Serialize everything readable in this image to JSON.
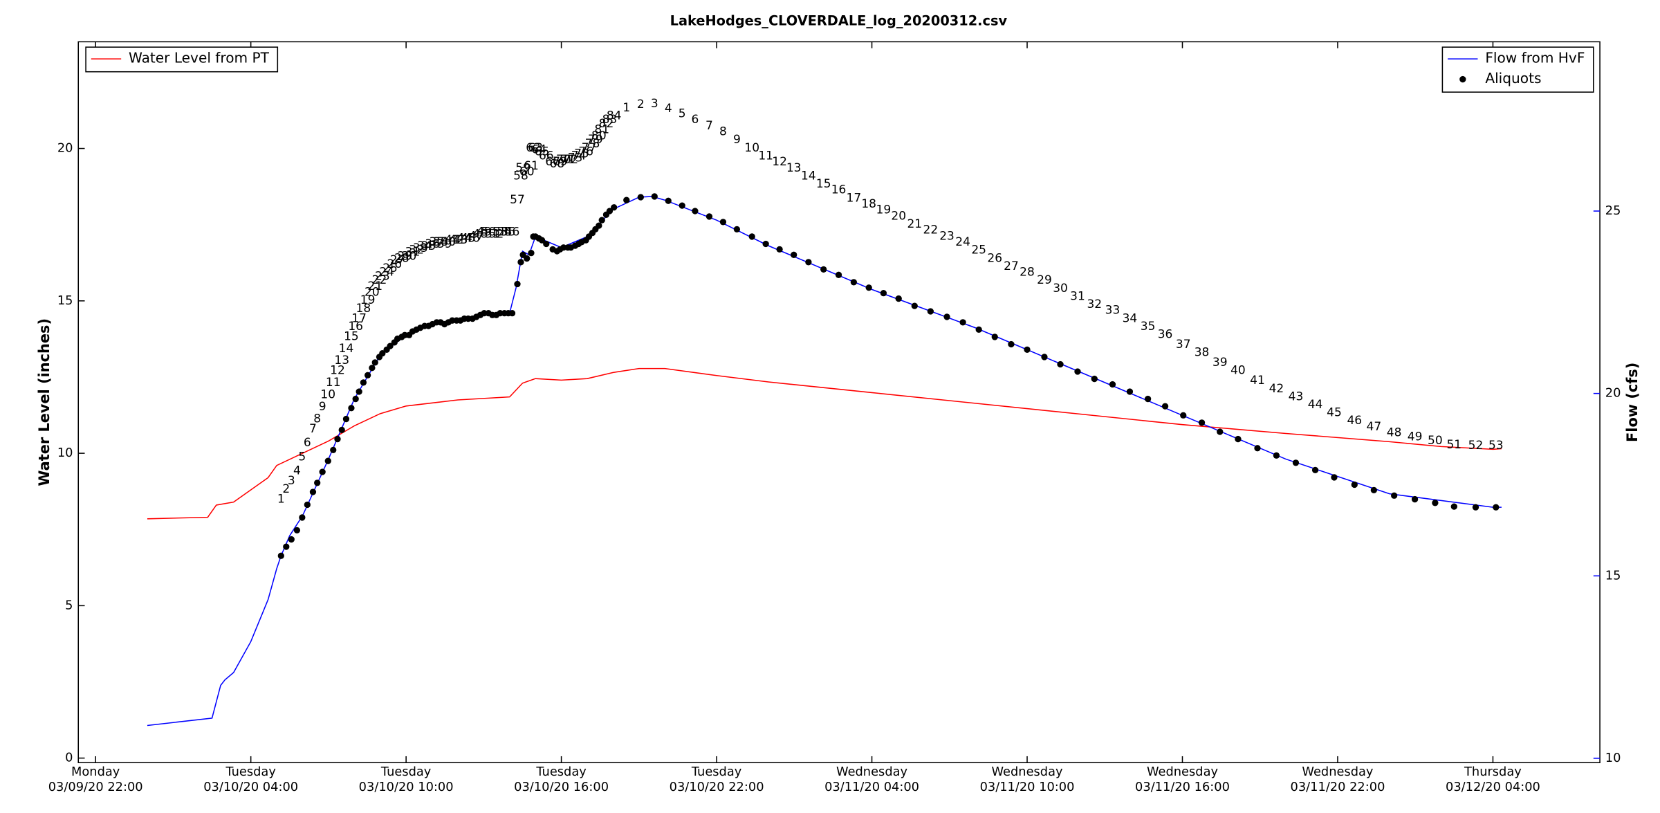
{
  "chart_data": {
    "type": "line",
    "title": "LakeHodges_CLOVERDALE_log_20200312.csv",
    "y_label": "Water Level (inches)",
    "y2_label": "Flow (cfs)",
    "y_color": "red",
    "y2_color": "blue",
    "xlim": [
      "03/09/20 21:20",
      "03/12/20 08:08"
    ],
    "xticks": [
      {
        "value": "03/09/20 22:00",
        "label": [
          "Monday",
          "03/09/20 22:00"
        ]
      },
      {
        "value": "03/10/20 04:00",
        "label": [
          "Tuesday",
          "03/10/20 04:00"
        ]
      },
      {
        "value": "03/10/20 10:00",
        "label": [
          "Tuesday",
          "03/10/20 10:00"
        ]
      },
      {
        "value": "03/10/20 16:00",
        "label": [
          "Tuesday",
          "03/10/20 16:00"
        ]
      },
      {
        "value": "03/10/20 22:00",
        "label": [
          "Tuesday",
          "03/10/20 22:00"
        ]
      },
      {
        "value": "03/11/20 04:00",
        "label": [
          "Wednesday",
          "03/11/20 04:00"
        ]
      },
      {
        "value": "03/11/20 10:00",
        "label": [
          "Wednesday",
          "03/11/20 10:00"
        ]
      },
      {
        "value": "03/11/20 16:00",
        "label": [
          "Wednesday",
          "03/11/20 16:00"
        ]
      },
      {
        "value": "03/11/20 22:00",
        "label": [
          "Wednesday",
          "03/11/20 22:00"
        ]
      },
      {
        "value": "03/12/20 04:00",
        "label": [
          "Thursday",
          "03/12/20 04:00"
        ]
      }
    ],
    "ylim": [
      -0.15,
      23.5
    ],
    "yticks": [
      0,
      5,
      10,
      15,
      20
    ],
    "y2lim": [
      9.88,
      29.64
    ],
    "y2ticks": [
      10,
      15,
      20,
      25
    ],
    "series": [
      {
        "name": "Water Level from PT",
        "color": "red",
        "legend_loc": "upper left",
        "axis": "y",
        "x": [
          "03/10/20 00:00",
          "03/10/20 02:20",
          "03/10/20 02:40",
          "03/10/20 03:20",
          "03/10/20 04:00",
          "03/10/20 04:40",
          "03/10/20 05:00",
          "03/10/20 06:00",
          "03/10/20 07:00",
          "03/10/20 08:00",
          "03/10/20 09:00",
          "03/10/20 10:00",
          "03/10/20 12:00",
          "03/10/20 14:00",
          "03/10/20 14:30",
          "03/10/20 15:00",
          "03/10/20 16:00",
          "03/10/20 17:00",
          "03/10/20 18:00",
          "03/10/20 19:00",
          "03/10/20 20:00",
          "03/10/20 22:00",
          "03/11/20 00:00",
          "03/11/20 04:00",
          "03/11/20 08:00",
          "03/11/20 12:00",
          "03/11/20 16:00",
          "03/11/20 20:00",
          "03/12/20 00:00",
          "03/12/20 02:00",
          "03/12/20 04:00",
          "03/12/20 04:20"
        ],
        "values": [
          7.85,
          7.9,
          8.3,
          8.4,
          8.8,
          9.2,
          9.6,
          10.0,
          10.4,
          10.9,
          11.3,
          11.55,
          11.75,
          11.85,
          12.3,
          12.45,
          12.4,
          12.45,
          12.65,
          12.78,
          12.78,
          12.55,
          12.34,
          11.99,
          11.64,
          11.29,
          10.94,
          10.65,
          10.38,
          10.22,
          10.13,
          10.15
        ]
      },
      {
        "name": "Flow from HvF",
        "color": "blue",
        "legend_loc": "upper right",
        "axis": "y2",
        "x": [
          "03/10/20 00:00",
          "03/10/20 02:30",
          "03/10/20 02:50",
          "03/10/20 03:00",
          "03/10/20 03:20",
          "03/10/20 04:00",
          "03/10/20 04:40",
          "03/10/20 05:00",
          "03/10/20 05:10",
          "03/10/20 05:30",
          "03/10/20 06:00",
          "03/10/20 07:00",
          "03/10/20 08:00",
          "03/10/20 09:00",
          "03/10/20 10:00",
          "03/10/20 11:00",
          "03/10/20 12:00",
          "03/10/20 13:00",
          "03/10/20 14:00",
          "03/10/20 14:15",
          "03/10/20 14:30",
          "03/10/20 14:45",
          "03/10/20 15:00",
          "03/10/20 16:00",
          "03/10/20 17:00",
          "03/10/20 18:00",
          "03/10/20 19:00",
          "03/10/20 19:30",
          "03/10/20 20:00",
          "03/10/20 22:00",
          "03/11/20 00:00",
          "03/11/20 04:00",
          "03/11/20 08:00",
          "03/11/20 12:00",
          "03/11/20 16:00",
          "03/11/20 20:00",
          "03/12/20 00:00",
          "03/12/20 04:00",
          "03/12/20 04:20"
        ],
        "values": [
          10.9,
          11.1,
          12.0,
          12.15,
          12.35,
          13.2,
          14.35,
          15.2,
          15.55,
          16.1,
          16.65,
          18.2,
          19.85,
          21.05,
          21.6,
          21.9,
          22.0,
          22.2,
          22.2,
          22.9,
          23.9,
          23.8,
          24.3,
          24.0,
          24.3,
          25.05,
          25.38,
          25.4,
          25.3,
          24.75,
          24.05,
          22.85,
          21.8,
          20.6,
          19.4,
          18.2,
          17.25,
          16.88,
          16.88
        ]
      },
      {
        "name": "Aliquots",
        "color": "black",
        "type": "scatter",
        "legend_loc": "upper right",
        "axis": "y2",
        "x": [
          "03/10/20 05:10",
          "03/10/20 05:22",
          "03/10/20 05:34",
          "03/10/20 05:47",
          "03/10/20 05:59",
          "03/10/20 06:11",
          "03/10/20 06:24",
          "03/10/20 06:34",
          "03/10/20 06:46",
          "03/10/20 06:59",
          "03/10/20 07:11",
          "03/10/20 07:21",
          "03/10/20 07:31",
          "03/10/20 07:41",
          "03/10/20 07:53",
          "03/10/20 08:03",
          "03/10/20 08:11",
          "03/10/20 08:21",
          "03/10/20 08:31",
          "03/10/20 08:41",
          "03/10/20 08:48",
          "03/10/20 08:58",
          "03/10/20 09:05",
          "03/10/20 09:15",
          "03/10/20 09:23",
          "03/10/20 09:33",
          "03/10/20 09:40",
          "03/10/20 09:50",
          "03/10/20 09:57",
          "03/10/20 10:07",
          "03/10/20 10:15",
          "03/10/20 10:24",
          "03/10/20 10:33",
          "03/10/20 10:43",
          "03/10/20 10:52",
          "03/10/20 11:01",
          "03/10/20 11:11",
          "03/10/20 11:20",
          "03/10/20 11:29",
          "03/10/20 11:38",
          "03/10/20 11:47",
          "03/10/20 11:57",
          "03/10/20 12:06",
          "03/10/20 12:15",
          "03/10/20 12:24",
          "03/10/20 12:34",
          "03/10/20 12:43",
          "03/10/20 12:52",
          "03/10/20 13:01",
          "03/10/20 13:11",
          "03/10/20 13:20",
          "03/10/20 13:29",
          "03/10/20 13:38",
          "03/10/20 13:48",
          "03/10/20 13:57",
          "03/10/20 14:06",
          "03/10/20 14:18",
          "03/10/20 14:26",
          "03/10/20 14:31",
          "03/10/20 14:40",
          "03/10/20 14:50",
          "03/10/20 14:55",
          "03/10/20 15:00",
          "03/10/20 15:08",
          "03/10/20 15:15",
          "03/10/20 15:25",
          "03/10/20 15:40",
          "03/10/20 15:50",
          "03/10/20 15:57",
          "03/10/20 16:05",
          "03/10/20 16:15",
          "03/10/20 16:22",
          "03/10/20 16:32",
          "03/10/20 16:40",
          "03/10/20 16:47",
          "03/10/20 16:57",
          "03/10/20 17:04",
          "03/10/20 17:12",
          "03/10/20 17:19",
          "03/10/20 17:27",
          "03/10/20 17:34",
          "03/10/20 17:44",
          "03/10/20 17:52",
          "03/10/20 18:02",
          "03/10/20 18:31",
          "03/10/20 19:04",
          "03/10/20 19:36",
          "03/10/20 20:08",
          "03/10/20 20:40",
          "03/10/20 21:10",
          "03/10/20 21:43",
          "03/10/20 22:15",
          "03/10/20 22:47",
          "03/10/20 23:22",
          "03/10/20 23:54",
          "03/11/20 00:26",
          "03/11/20 00:59",
          "03/11/20 01:33",
          "03/11/20 02:08",
          "03/11/20 02:43",
          "03/11/20 03:18",
          "03/11/20 03:53",
          "03/11/20 04:27",
          "03/11/20 05:02",
          "03/11/20 05:39",
          "03/11/20 06:16",
          "03/11/20 06:54",
          "03/11/20 07:31",
          "03/11/20 08:08",
          "03/11/20 08:45",
          "03/11/20 09:23",
          "03/11/20 10:00",
          "03/11/20 10:40",
          "03/11/20 11:17",
          "03/11/20 11:57",
          "03/11/20 12:36",
          "03/11/20 13:18",
          "03/11/20 13:58",
          "03/11/20 14:40",
          "03/11/20 15:20",
          "03/11/20 16:02",
          "03/11/20 16:45",
          "03/11/20 17:27",
          "03/11/20 18:09",
          "03/11/20 18:54",
          "03/11/20 19:38",
          "03/11/20 20:23",
          "03/11/20 21:08",
          "03/11/20 21:52",
          "03/11/20 22:39",
          "03/11/20 23:24",
          "03/12/20 00:11",
          "03/12/20 00:59",
          "03/12/20 01:46",
          "03/12/20 02:30",
          "03/12/20 03:20",
          "03/12/20 04:07"
        ],
        "values": [
          15.55,
          15.8,
          16.0,
          16.25,
          16.6,
          16.95,
          17.3,
          17.55,
          17.85,
          18.15,
          18.45,
          18.75,
          19.0,
          19.3,
          19.6,
          19.85,
          20.05,
          20.3,
          20.5,
          20.7,
          20.85,
          21.0,
          21.1,
          21.2,
          21.3,
          21.4,
          21.5,
          21.55,
          21.6,
          21.6,
          21.7,
          21.75,
          21.8,
          21.85,
          21.85,
          21.9,
          21.95,
          21.95,
          21.9,
          21.95,
          22.0,
          22.0,
          22.0,
          22.05,
          22.05,
          22.05,
          22.1,
          22.15,
          22.2,
          22.2,
          22.15,
          22.15,
          22.2,
          22.2,
          22.2,
          22.2,
          23.0,
          23.6,
          23.8,
          23.7,
          23.85,
          24.3,
          24.3,
          24.25,
          24.2,
          24.1,
          23.95,
          23.9,
          23.95,
          24.0,
          24.0,
          24.0,
          24.05,
          24.1,
          24.15,
          24.2,
          24.3,
          24.4,
          24.5,
          24.6,
          24.75,
          24.9,
          25.0,
          25.1,
          25.3,
          25.38,
          25.4,
          25.28,
          25.15,
          25.0,
          24.85,
          24.7,
          24.5,
          24.3,
          24.1,
          23.95,
          23.8,
          23.6,
          23.4,
          23.25,
          23.05,
          22.9,
          22.75,
          22.6,
          22.4,
          22.25,
          22.1,
          21.95,
          21.75,
          21.55,
          21.35,
          21.2,
          21.0,
          20.8,
          20.6,
          20.4,
          20.25,
          20.05,
          19.85,
          19.65,
          19.4,
          19.2,
          18.95,
          18.75,
          18.5,
          18.3,
          18.1,
          17.9,
          17.7,
          17.5,
          17.35,
          17.2,
          17.1,
          17.0,
          16.9,
          16.88,
          16.88
        ],
        "labels": [
          1,
          2,
          3,
          4,
          5,
          6,
          7,
          8,
          9,
          10,
          11,
          12,
          13,
          14,
          15,
          16,
          17,
          18,
          19,
          20,
          21,
          22,
          23,
          24,
          25,
          26,
          27,
          28,
          29,
          30,
          31,
          32,
          33,
          34,
          35,
          36,
          37,
          38,
          39,
          40,
          41,
          42,
          43,
          44,
          45,
          46,
          47,
          48,
          49,
          50,
          51,
          52,
          53,
          54,
          55,
          56,
          57,
          58,
          59,
          60,
          61,
          62,
          63,
          64,
          65,
          66,
          67,
          68,
          69,
          70,
          71,
          72,
          73,
          74,
          75,
          76,
          77,
          78,
          79,
          80,
          81,
          82,
          83,
          84,
          1,
          2,
          3,
          4,
          5,
          6,
          7,
          8,
          9,
          10,
          11,
          12,
          13,
          14,
          15,
          16,
          17,
          18,
          19,
          20,
          21,
          22,
          23,
          24,
          25,
          26,
          27,
          28,
          29,
          30,
          31,
          32,
          33,
          34,
          35,
          36,
          37,
          38,
          39,
          40,
          41,
          42,
          43,
          44,
          45,
          46,
          47,
          48,
          49,
          50,
          51,
          52,
          53
        ]
      }
    ]
  }
}
